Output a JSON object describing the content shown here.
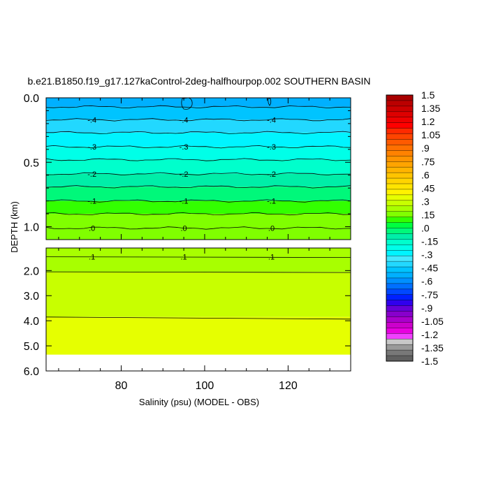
{
  "chart_data": {
    "type": "contour",
    "title": "b.e21.B1850.f19_g17.127kaControl-2deg-halfhourpop.002 SOUTHERN BASIN",
    "xlabel": "Salinity (psu) (MODEL - OBS)",
    "ylabel": "DEPTH (km)",
    "x_range": [
      62,
      135
    ],
    "x_ticks": [
      80,
      100,
      120
    ],
    "x_tick_labels": [
      "80",
      "100",
      "120"
    ],
    "upper_panel": {
      "y_range": [
        0.0,
        1.1
      ],
      "y_ticks": [
        0.0,
        0.5,
        1.0
      ],
      "y_tick_labels": [
        "0.0",
        "0.5",
        "1.0"
      ],
      "bands": [
        {
          "from": 0.0,
          "to": 0.07,
          "level": -0.525
        },
        {
          "from": 0.07,
          "to": 0.17,
          "level": -0.45
        },
        {
          "from": 0.17,
          "to": 0.27,
          "level": -0.375
        },
        {
          "from": 0.27,
          "to": 0.38,
          "level": -0.3
        },
        {
          "from": 0.38,
          "to": 0.48,
          "level": -0.225
        },
        {
          "from": 0.48,
          "to": 0.59,
          "level": -0.15
        },
        {
          "from": 0.59,
          "to": 0.69,
          "level": -0.075
        },
        {
          "from": 0.69,
          "to": 0.8,
          "level": 0.0
        },
        {
          "from": 0.8,
          "to": 0.9,
          "level": 0.075
        },
        {
          "from": 0.9,
          "to": 1.1,
          "level": 0.15
        }
      ],
      "contour_lines": [
        {
          "depth": 0.07,
          "label": ""
        },
        {
          "depth": 0.17,
          "label": "-.4"
        },
        {
          "depth": 0.27,
          "label": ""
        },
        {
          "depth": 0.38,
          "label": "-.3"
        },
        {
          "depth": 0.48,
          "label": ""
        },
        {
          "depth": 0.59,
          "label": "-.2"
        },
        {
          "depth": 0.69,
          "label": ""
        },
        {
          "depth": 0.8,
          "label": "-.1"
        },
        {
          "depth": 0.9,
          "label": ""
        },
        {
          "depth": 1.01,
          "label": ".0"
        }
      ],
      "label_x": [
        73,
        95,
        116
      ]
    },
    "lower_panel": {
      "y_range": [
        1.1,
        6.0
      ],
      "y_ticks": [
        2.0,
        3.0,
        4.0,
        5.0,
        6.0
      ],
      "y_tick_labels": [
        "2.0",
        "3.0",
        "4.0",
        "5.0",
        "6.0"
      ],
      "data_bottom": 5.35,
      "bands": [
        {
          "from": 1.1,
          "to": 2.05,
          "level": 0.225
        },
        {
          "from": 2.05,
          "to": 3.85,
          "level": 0.3
        },
        {
          "from": 3.85,
          "to": 5.35,
          "level": 0.375
        }
      ],
      "contour_lines": [
        {
          "depth": 1.45,
          "label": ".1"
        },
        {
          "depth": 2.05,
          "label": ""
        },
        {
          "depth": 3.85,
          "label": ""
        }
      ],
      "label_x": [
        73,
        95,
        116
      ]
    },
    "colorbar": {
      "labels": [
        "1.5",
        "1.35",
        "1.2",
        "1.05",
        ".9",
        ".75",
        ".6",
        ".45",
        ".3",
        ".15",
        ".0",
        "-.15",
        "-.3",
        "-.45",
        "-.6",
        "-.75",
        "-.9",
        "-1.05",
        "-1.2",
        "-1.35",
        "-1.5"
      ],
      "colors": [
        "#a80000",
        "#bb0000",
        "#cc0000",
        "#dd0000",
        "#ee0000",
        "#ff0000",
        "#ff2a00",
        "#ff4400",
        "#ff5a00",
        "#ff7000",
        "#ff8200",
        "#ff9400",
        "#ffa400",
        "#ffb400",
        "#ffc400",
        "#ffd400",
        "#ffe400",
        "#fff200",
        "#e6ff00",
        "#c8ff00",
        "#a8ff00",
        "#80ff00",
        "#33ff00",
        "#00ff40",
        "#00f87a",
        "#00eea8",
        "#00ffcc",
        "#00ffe8",
        "#00f4ff",
        "#44e8ff",
        "#22d8ff",
        "#00c4ff",
        "#00b0ff",
        "#0090ff",
        "#0070ff",
        "#0048ff",
        "#0020ff",
        "#3000ee",
        "#6600d8",
        "#8800cc",
        "#aa00cc",
        "#cc00cc",
        "#e800e0",
        "#f040ff",
        "#c8c8c8",
        "#9a9a9a",
        "#787878",
        "#606060"
      ]
    }
  }
}
